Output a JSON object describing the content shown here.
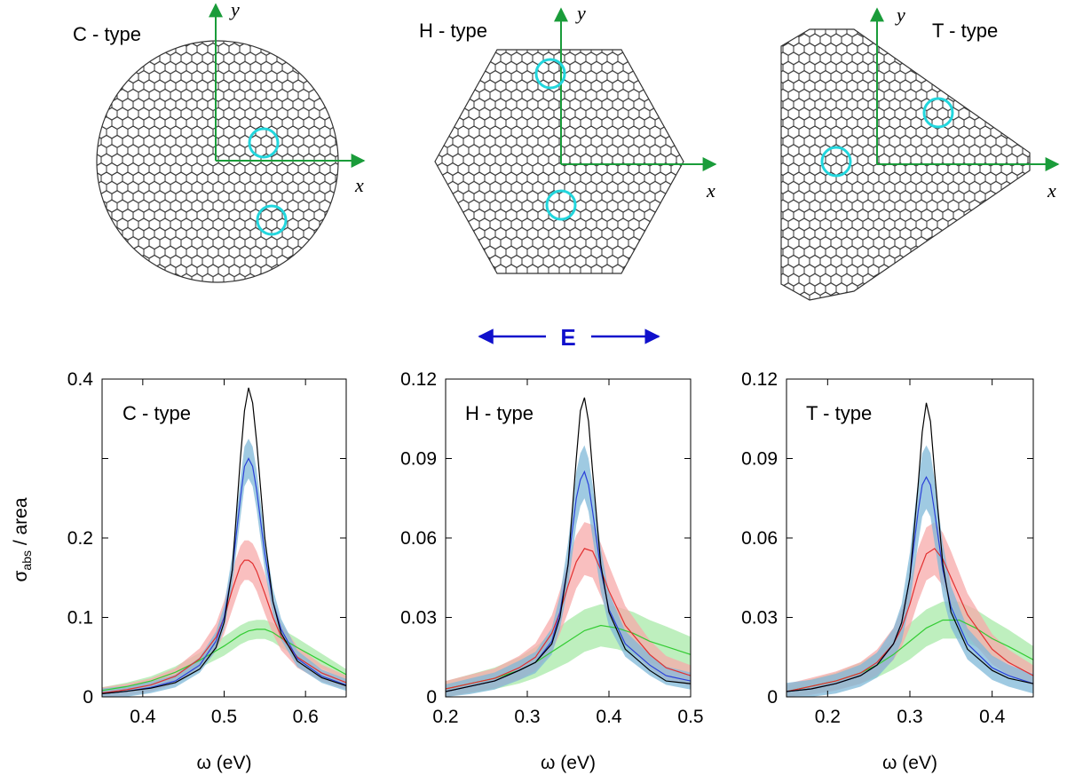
{
  "figure": {
    "flakes": [
      {
        "label": "C - type",
        "shape": "circle"
      },
      {
        "label": "H - type",
        "shape": "hexagon"
      },
      {
        "label": "T - type",
        "shape": "triangle"
      }
    ],
    "axis_x_symbol": "x",
    "axis_y_symbol": "y",
    "field_label": "E",
    "colors": {
      "lattice": "#333333",
      "defect_circle": "#22d6dd",
      "axes": "#1a9c3a",
      "field_arrow": "#1010cc",
      "black": "#000000",
      "blue": "#2a40d8",
      "red": "#e23030",
      "green": "#33cc33"
    }
  },
  "chart_data": [
    {
      "type": "line",
      "title": "C - type",
      "xlabel": "ω (eV)",
      "ylabel": "σabs / area",
      "ylabel_main": "σ",
      "ylabel_sub": "abs",
      "ylabel_rest": " / area",
      "xlim": [
        0.35,
        0.65
      ],
      "ylim": [
        0,
        0.4
      ],
      "xticks": [
        0.4,
        0.5,
        0.6
      ],
      "xtick_labels": [
        "0.4",
        "0.5",
        "0.6"
      ],
      "yticks": [
        0,
        0.1,
        0.2,
        0.3,
        0.4
      ],
      "ytick_labels": [
        "0",
        "0.1",
        "0.2",
        "",
        "0.4"
      ],
      "grid": false,
      "legend": "none",
      "series": [
        {
          "color": "black",
          "x": [
            0.35,
            0.38,
            0.41,
            0.44,
            0.47,
            0.49,
            0.5,
            0.51,
            0.52,
            0.525,
            0.53,
            0.535,
            0.54,
            0.55,
            0.56,
            0.57,
            0.59,
            0.62,
            0.65
          ],
          "y": [
            0.004,
            0.007,
            0.011,
            0.018,
            0.035,
            0.062,
            0.094,
            0.16,
            0.3,
            0.36,
            0.389,
            0.37,
            0.32,
            0.2,
            0.12,
            0.08,
            0.045,
            0.024,
            0.014
          ]
        },
        {
          "color": "blue",
          "band": 0.025,
          "x": [
            0.35,
            0.38,
            0.41,
            0.44,
            0.47,
            0.49,
            0.5,
            0.51,
            0.52,
            0.525,
            0.53,
            0.535,
            0.54,
            0.55,
            0.56,
            0.57,
            0.59,
            0.62,
            0.65
          ],
          "y": [
            0.004,
            0.007,
            0.012,
            0.02,
            0.04,
            0.07,
            0.1,
            0.16,
            0.25,
            0.29,
            0.3,
            0.29,
            0.26,
            0.18,
            0.12,
            0.085,
            0.048,
            0.026,
            0.015
          ]
        },
        {
          "color": "red",
          "band": 0.025,
          "x": [
            0.35,
            0.38,
            0.41,
            0.44,
            0.47,
            0.49,
            0.5,
            0.51,
            0.52,
            0.525,
            0.53,
            0.535,
            0.54,
            0.55,
            0.56,
            0.57,
            0.59,
            0.62,
            0.65
          ],
          "y": [
            0.005,
            0.009,
            0.015,
            0.026,
            0.048,
            0.075,
            0.1,
            0.135,
            0.165,
            0.172,
            0.172,
            0.168,
            0.158,
            0.13,
            0.1,
            0.076,
            0.05,
            0.03,
            0.018
          ]
        },
        {
          "color": "green",
          "band": 0.012,
          "x": [
            0.35,
            0.38,
            0.41,
            0.44,
            0.47,
            0.49,
            0.5,
            0.51,
            0.52,
            0.53,
            0.54,
            0.55,
            0.56,
            0.57,
            0.59,
            0.62,
            0.65
          ],
          "y": [
            0.008,
            0.013,
            0.02,
            0.031,
            0.046,
            0.058,
            0.064,
            0.071,
            0.078,
            0.083,
            0.085,
            0.085,
            0.081,
            0.074,
            0.062,
            0.045,
            0.028
          ]
        }
      ]
    },
    {
      "type": "line",
      "title": "H - type",
      "xlabel": "ω (eV)",
      "xlim": [
        0.2,
        0.5
      ],
      "ylim": [
        0,
        0.12
      ],
      "xticks": [
        0.2,
        0.3,
        0.4,
        0.5
      ],
      "xtick_labels": [
        "0.2",
        "0.3",
        "0.4",
        "0.5"
      ],
      "yticks": [
        0,
        0.03,
        0.06,
        0.09,
        0.12
      ],
      "ytick_labels": [
        "0",
        "0.03",
        "0.06",
        "0.09",
        "0.12"
      ],
      "grid": false,
      "legend": "none",
      "series": [
        {
          "color": "black",
          "x": [
            0.2,
            0.23,
            0.26,
            0.29,
            0.31,
            0.33,
            0.34,
            0.35,
            0.36,
            0.365,
            0.37,
            0.375,
            0.38,
            0.39,
            0.4,
            0.42,
            0.45,
            0.47,
            0.5
          ],
          "y": [
            0.002,
            0.004,
            0.006,
            0.01,
            0.013,
            0.02,
            0.03,
            0.05,
            0.09,
            0.108,
            0.113,
            0.104,
            0.085,
            0.05,
            0.032,
            0.018,
            0.01,
            0.006,
            0.005
          ]
        },
        {
          "color": "blue",
          "band": 0.01,
          "x": [
            0.2,
            0.23,
            0.26,
            0.29,
            0.31,
            0.33,
            0.34,
            0.35,
            0.36,
            0.365,
            0.37,
            0.375,
            0.38,
            0.39,
            0.4,
            0.42,
            0.45,
            0.47,
            0.5
          ],
          "y": [
            0.002,
            0.004,
            0.006,
            0.01,
            0.013,
            0.021,
            0.032,
            0.05,
            0.075,
            0.082,
            0.085,
            0.08,
            0.07,
            0.048,
            0.033,
            0.02,
            0.012,
            0.008,
            0.006
          ]
        },
        {
          "color": "red",
          "band": 0.01,
          "x": [
            0.2,
            0.23,
            0.26,
            0.29,
            0.31,
            0.33,
            0.34,
            0.35,
            0.36,
            0.37,
            0.38,
            0.39,
            0.4,
            0.42,
            0.45,
            0.47,
            0.5
          ],
          "y": [
            0.003,
            0.005,
            0.007,
            0.011,
            0.015,
            0.024,
            0.032,
            0.042,
            0.051,
            0.056,
            0.055,
            0.048,
            0.04,
            0.027,
            0.016,
            0.011,
            0.008
          ]
        },
        {
          "color": "green",
          "band": 0.008,
          "x": [
            0.2,
            0.23,
            0.26,
            0.29,
            0.31,
            0.33,
            0.35,
            0.37,
            0.39,
            0.41,
            0.43,
            0.45,
            0.47,
            0.5
          ],
          "y": [
            0.003,
            0.005,
            0.007,
            0.01,
            0.013,
            0.017,
            0.021,
            0.025,
            0.027,
            0.026,
            0.024,
            0.021,
            0.019,
            0.016
          ]
        }
      ]
    },
    {
      "type": "line",
      "title": "T - type",
      "xlabel": "ω (eV)",
      "xlim": [
        0.15,
        0.45
      ],
      "ylim": [
        0,
        0.12
      ],
      "xticks": [
        0.2,
        0.3,
        0.4
      ],
      "xtick_labels": [
        "0.2",
        "0.3",
        "0.4"
      ],
      "yticks": [
        0,
        0.03,
        0.06,
        0.09,
        0.12
      ],
      "ytick_labels": [
        "0",
        "0.03",
        "0.06",
        "0.09",
        "0.12"
      ],
      "grid": false,
      "legend": "none",
      "series": [
        {
          "color": "black",
          "x": [
            0.15,
            0.18,
            0.21,
            0.24,
            0.26,
            0.28,
            0.29,
            0.3,
            0.31,
            0.315,
            0.32,
            0.325,
            0.33,
            0.34,
            0.35,
            0.37,
            0.4,
            0.42,
            0.45
          ],
          "y": [
            0.002,
            0.003,
            0.005,
            0.008,
            0.012,
            0.02,
            0.028,
            0.045,
            0.08,
            0.1,
            0.111,
            0.104,
            0.085,
            0.05,
            0.032,
            0.018,
            0.01,
            0.007,
            0.005
          ]
        },
        {
          "color": "blue",
          "band": 0.012,
          "x": [
            0.15,
            0.18,
            0.21,
            0.24,
            0.26,
            0.28,
            0.29,
            0.3,
            0.31,
            0.315,
            0.32,
            0.325,
            0.33,
            0.34,
            0.35,
            0.37,
            0.4,
            0.42,
            0.45
          ],
          "y": [
            0.002,
            0.003,
            0.005,
            0.008,
            0.012,
            0.02,
            0.028,
            0.045,
            0.07,
            0.08,
            0.083,
            0.08,
            0.07,
            0.048,
            0.034,
            0.02,
            0.011,
            0.008,
            0.005
          ]
        },
        {
          "color": "red",
          "band": 0.01,
          "x": [
            0.15,
            0.18,
            0.21,
            0.24,
            0.26,
            0.28,
            0.29,
            0.3,
            0.31,
            0.32,
            0.33,
            0.34,
            0.35,
            0.37,
            0.4,
            0.42,
            0.45
          ],
          "y": [
            0.002,
            0.004,
            0.006,
            0.009,
            0.013,
            0.02,
            0.026,
            0.035,
            0.046,
            0.054,
            0.056,
            0.052,
            0.045,
            0.031,
            0.018,
            0.013,
            0.008
          ]
        },
        {
          "color": "green",
          "band": 0.007,
          "x": [
            0.15,
            0.18,
            0.21,
            0.24,
            0.26,
            0.28,
            0.3,
            0.32,
            0.34,
            0.36,
            0.38,
            0.4,
            0.42,
            0.45
          ],
          "y": [
            0.002,
            0.004,
            0.006,
            0.009,
            0.012,
            0.016,
            0.021,
            0.026,
            0.029,
            0.029,
            0.026,
            0.022,
            0.019,
            0.014
          ]
        }
      ]
    }
  ]
}
